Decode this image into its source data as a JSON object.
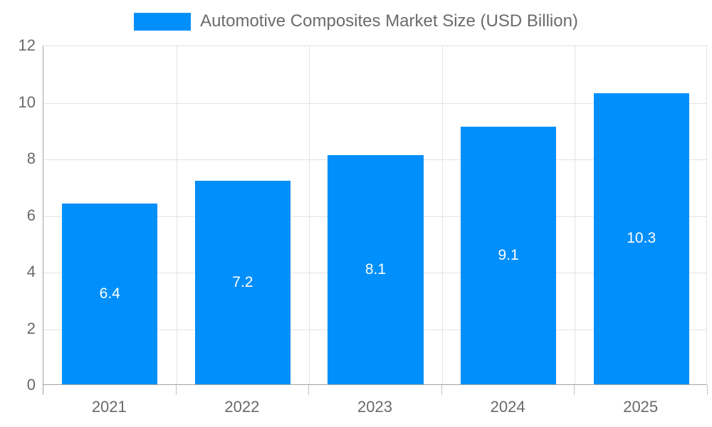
{
  "legend": {
    "label": "Automotive Composites Market Size (USD Billion)"
  },
  "chart_data": {
    "type": "bar",
    "title": "Automotive Composites Market Size (USD Billion)",
    "categories": [
      "2021",
      "2022",
      "2023",
      "2024",
      "2025"
    ],
    "series": [
      {
        "name": "Automotive Composites Market Size (USD Billion)",
        "values": [
          6.4,
          7.2,
          8.1,
          9.1,
          10.3
        ]
      }
    ],
    "data_labels": [
      "6.4",
      "7.2",
      "8.1",
      "9.1",
      "10.3"
    ],
    "xlabel": "",
    "ylabel": "",
    "ylim": [
      0,
      12
    ],
    "yticks": [
      0,
      2,
      4,
      6,
      8,
      10,
      12
    ],
    "ytick_labels": [
      "0",
      "2",
      "4",
      "6",
      "8",
      "10",
      "12"
    ],
    "grid": true,
    "legend_position": "top",
    "bar_width_fraction": 0.72,
    "colors": {
      "bar": "#008FFB",
      "grid": "#e3e3e3",
      "axis": "#a3a3a3",
      "tick_mark": "#c2c2c2",
      "tick_label": "#696969",
      "legend_text": "#6b6b6b",
      "value_label": "#ffffff"
    }
  }
}
